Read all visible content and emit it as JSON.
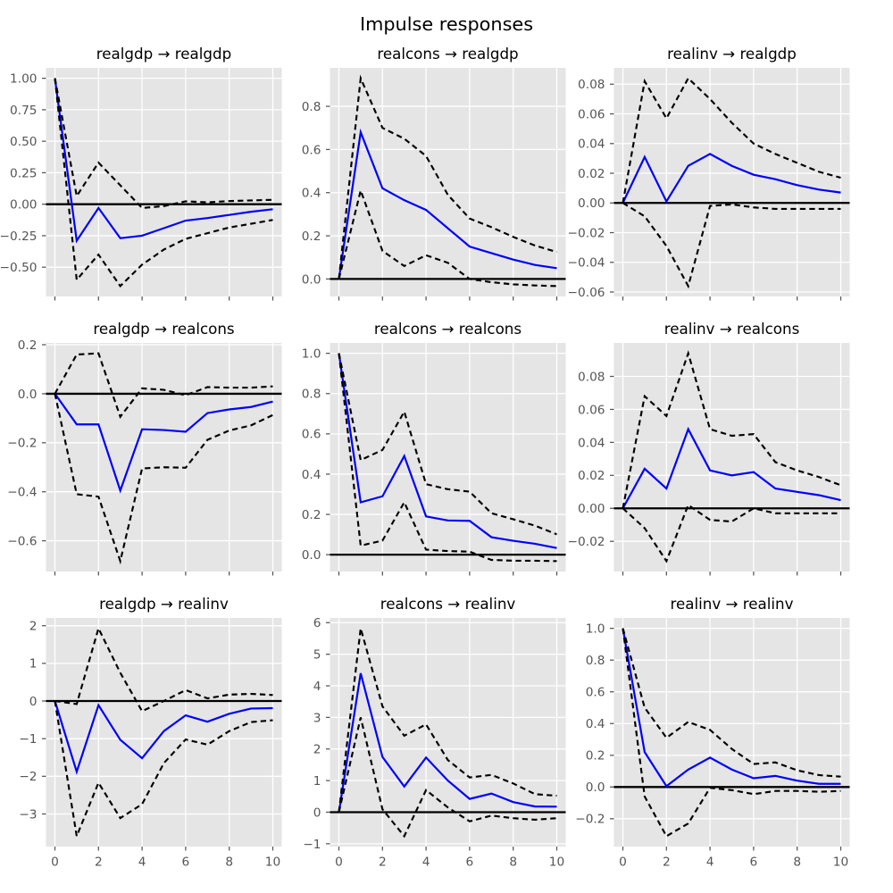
{
  "figure": {
    "title": "Impulse responses"
  },
  "style": {
    "figure_background": "#ffffff",
    "axes_background": "#e5e5e5",
    "grid_color": "#ffffff",
    "irf_line_color": "#0000ff",
    "confidence_band_color": "#000000",
    "zero_line_color": "#000000",
    "tick_color": "#555555",
    "title_color": "#000000"
  },
  "chart_data": {
    "type": "line",
    "title": "Impulse responses",
    "x": [
      0,
      1,
      2,
      3,
      4,
      5,
      6,
      7,
      8,
      9,
      10
    ],
    "xticks": [
      0,
      2,
      4,
      6,
      8,
      10
    ],
    "xtick_labels": [
      "0",
      "2",
      "4",
      "6",
      "8",
      "10"
    ],
    "xlim": [
      -0.41,
      10.41
    ],
    "grid": true,
    "legend": null,
    "series_styles": {
      "irf": "solid blue line",
      "upper": "dashed black line (upper confidence band)",
      "lower": "dashed black line (lower confidence band)"
    },
    "subplots": [
      {
        "row": 0,
        "col": 0,
        "title": "realgdp → realgdp",
        "impulse": "realgdp",
        "response": "realgdp",
        "ylim": [
          -0.7325,
          1.0825
        ],
        "ytick_values": [
          1.0,
          0.75,
          0.5,
          0.25,
          0.0,
          -0.25,
          -0.5
        ],
        "ytick_labels": [
          "1.00",
          "0.75",
          "0.50",
          "0.25",
          "0.00",
          "−0.25",
          "−0.50"
        ],
        "series": [
          {
            "name": "irf",
            "values": [
              1.0,
              -0.29,
              -0.03,
              -0.27,
              -0.25,
              -0.19,
              -0.13,
              -0.11,
              -0.085,
              -0.06,
              -0.04
            ]
          },
          {
            "name": "upper",
            "values": [
              1.0,
              0.065,
              0.33,
              0.15,
              -0.03,
              -0.015,
              0.023,
              0.015,
              0.025,
              0.03,
              0.035
            ]
          },
          {
            "name": "lower",
            "values": [
              1.0,
              -0.6,
              -0.4,
              -0.65,
              -0.48,
              -0.36,
              -0.275,
              -0.23,
              -0.185,
              -0.155,
              -0.125
            ]
          }
        ]
      },
      {
        "row": 0,
        "col": 1,
        "title": "realcons → realgdp",
        "impulse": "realcons",
        "response": "realgdp",
        "ylim": [
          -0.0811,
          0.9782
        ],
        "ytick_values": [
          0.8,
          0.6,
          0.4,
          0.2,
          0.0
        ],
        "ytick_labels": [
          "0.8",
          "0.6",
          "0.4",
          "0.2",
          "0.0"
        ],
        "series": [
          {
            "name": "irf",
            "values": [
              0,
              0.68,
              0.42,
              0.365,
              0.32,
              0.235,
              0.15,
              0.12,
              0.09,
              0.065,
              0.05
            ]
          },
          {
            "name": "upper",
            "values": [
              0,
              0.93,
              0.7,
              0.65,
              0.57,
              0.39,
              0.28,
              0.24,
              0.195,
              0.155,
              0.125
            ]
          },
          {
            "name": "lower",
            "values": [
              0,
              0.41,
              0.13,
              0.06,
              0.11,
              0.075,
              0.0,
              -0.015,
              -0.025,
              -0.03,
              -0.033
            ]
          }
        ]
      },
      {
        "row": 0,
        "col": 2,
        "title": "realinv → realgdp",
        "impulse": "realinv",
        "response": "realgdp",
        "ylim": [
          -0.063,
          0.091
        ],
        "ytick_values": [
          0.08,
          0.06,
          0.04,
          0.02,
          0.0,
          -0.02,
          -0.04,
          -0.06
        ],
        "ytick_labels": [
          "0.08",
          "0.06",
          "0.04",
          "0.02",
          "0.00",
          "−0.02",
          "−0.04",
          "−0.06"
        ],
        "series": [
          {
            "name": "irf",
            "values": [
              0,
              0.031,
              0.001,
              0.025,
              0.033,
              0.025,
              0.019,
              0.016,
              0.012,
              0.009,
              0.007
            ]
          },
          {
            "name": "upper",
            "values": [
              0,
              0.082,
              0.057,
              0.084,
              0.07,
              0.054,
              0.04,
              0.033,
              0.027,
              0.021,
              0.017
            ]
          },
          {
            "name": "lower",
            "values": [
              0,
              -0.009,
              -0.029,
              -0.056,
              -0.002,
              -0.001,
              -0.003,
              -0.004,
              -0.004,
              -0.004,
              -0.004
            ]
          }
        ]
      },
      {
        "row": 1,
        "col": 0,
        "title": "realgdp → realcons",
        "impulse": "realgdp",
        "response": "realcons",
        "ylim": [
          -0.7254,
          0.2074
        ],
        "ytick_values": [
          0.2,
          0.0,
          -0.2,
          -0.4,
          -0.6
        ],
        "ytick_labels": [
          "0.2",
          "0.0",
          "−0.2",
          "−0.4",
          "−0.6"
        ],
        "series": [
          {
            "name": "irf",
            "values": [
              0,
              -0.125,
              -0.125,
              -0.395,
              -0.145,
              -0.148,
              -0.155,
              -0.079,
              -0.064,
              -0.054,
              -0.032
            ]
          },
          {
            "name": "upper",
            "values": [
              0,
              0.16,
              0.165,
              -0.094,
              0.022,
              0.016,
              -0.006,
              0.027,
              0.025,
              0.025,
              0.03
            ]
          },
          {
            "name": "lower",
            "values": [
              0,
              -0.41,
              -0.42,
              -0.683,
              -0.305,
              -0.3,
              -0.302,
              -0.188,
              -0.15,
              -0.129,
              -0.087
            ]
          }
        ]
      },
      {
        "row": 1,
        "col": 1,
        "title": "realcons → realcons",
        "impulse": "realcons",
        "response": "realcons",
        "ylim": [
          -0.0836,
          1.0516
        ],
        "ytick_values": [
          1.0,
          0.8,
          0.6,
          0.4,
          0.2,
          0.0
        ],
        "ytick_labels": [
          "1.0",
          "0.8",
          "0.6",
          "0.4",
          "0.2",
          "0.0"
        ],
        "series": [
          {
            "name": "irf",
            "values": [
              1.0,
              0.26,
              0.29,
              0.49,
              0.19,
              0.17,
              0.168,
              0.087,
              0.069,
              0.054,
              0.033
            ]
          },
          {
            "name": "upper",
            "values": [
              1.0,
              0.47,
              0.52,
              0.71,
              0.35,
              0.325,
              0.313,
              0.206,
              0.176,
              0.144,
              0.101
            ]
          },
          {
            "name": "lower",
            "values": [
              1.0,
              0.045,
              0.07,
              0.26,
              0.025,
              0.018,
              0.015,
              -0.026,
              -0.03,
              -0.03,
              -0.032
            ]
          }
        ]
      },
      {
        "row": 1,
        "col": 2,
        "title": "realinv → realcons",
        "impulse": "realinv",
        "response": "realcons",
        "ylim": [
          -0.0383,
          0.1003
        ],
        "ytick_values": [
          0.08,
          0.06,
          0.04,
          0.02,
          0.0,
          -0.02
        ],
        "ytick_labels": [
          "0.08",
          "0.06",
          "0.04",
          "0.02",
          "0.00",
          "−0.02"
        ],
        "series": [
          {
            "name": "irf",
            "values": [
              0,
              0.024,
              0.012,
              0.048,
              0.023,
              0.02,
              0.022,
              0.012,
              0.01,
              0.008,
              0.005
            ]
          },
          {
            "name": "upper",
            "values": [
              0,
              0.068,
              0.056,
              0.094,
              0.048,
              0.044,
              0.045,
              0.028,
              0.023,
              0.019,
              0.014
            ]
          },
          {
            "name": "lower",
            "values": [
              0,
              -0.012,
              -0.032,
              0.002,
              -0.007,
              -0.008,
              0.0,
              -0.003,
              -0.003,
              -0.003,
              -0.003
            ]
          }
        ]
      },
      {
        "row": 2,
        "col": 0,
        "title": "realgdp → realinv",
        "impulse": "realgdp",
        "response": "realinv",
        "ylim": [
          -3.866,
          2.206
        ],
        "ytick_values": [
          2,
          1,
          0,
          -1,
          -2,
          -3
        ],
        "ytick_labels": [
          "2",
          "1",
          "0",
          "−1",
          "−2",
          "−3"
        ],
        "series": [
          {
            "name": "irf",
            "values": [
              0,
              -1.88,
              -0.11,
              -1.03,
              -1.52,
              -0.8,
              -0.38,
              -0.55,
              -0.34,
              -0.2,
              -0.19
            ]
          },
          {
            "name": "upper",
            "values": [
              0,
              -0.08,
              1.93,
              0.75,
              -0.27,
              0.0,
              0.29,
              0.07,
              0.17,
              0.19,
              0.16
            ]
          },
          {
            "name": "lower",
            "values": [
              0,
              -3.59,
              -2.17,
              -3.11,
              -2.74,
              -1.65,
              -1.02,
              -1.16,
              -0.8,
              -0.56,
              -0.51
            ]
          }
        ]
      },
      {
        "row": 2,
        "col": 1,
        "title": "realcons → realinv",
        "impulse": "realcons",
        "response": "realinv",
        "ylim": [
          -1.089,
          6.149
        ],
        "ytick_values": [
          6,
          5,
          4,
          3,
          2,
          1,
          0,
          -1
        ],
        "ytick_labels": [
          "6",
          "5",
          "4",
          "3",
          "2",
          "1",
          "0",
          "−1"
        ],
        "series": [
          {
            "name": "irf",
            "values": [
              0,
              4.4,
              1.75,
              0.81,
              1.73,
              1.0,
              0.42,
              0.59,
              0.32,
              0.18,
              0.175
            ]
          },
          {
            "name": "upper",
            "values": [
              0,
              5.82,
              3.35,
              2.42,
              2.78,
              1.65,
              1.1,
              1.18,
              0.91,
              0.57,
              0.52
            ]
          },
          {
            "name": "lower",
            "values": [
              0,
              3.0,
              0.09,
              -0.76,
              0.7,
              0.15,
              -0.29,
              -0.11,
              -0.19,
              -0.24,
              -0.19
            ]
          }
        ]
      },
      {
        "row": 2,
        "col": 2,
        "title": "realinv → realinv",
        "impulse": "realinv",
        "response": "realinv",
        "ylim": [
          -0.3755,
          1.0655
        ],
        "ytick_values": [
          1.0,
          0.8,
          0.6,
          0.4,
          0.2,
          0.0,
          -0.2
        ],
        "ytick_labels": [
          "1.0",
          "0.8",
          "0.6",
          "0.4",
          "0.2",
          "0.0",
          "−0.2"
        ],
        "series": [
          {
            "name": "irf",
            "values": [
              1.0,
              0.22,
              0.005,
              0.11,
              0.185,
              0.11,
              0.055,
              0.07,
              0.04,
              0.02,
              0.02
            ]
          },
          {
            "name": "upper",
            "values": [
              1.0,
              0.5,
              0.31,
              0.41,
              0.36,
              0.24,
              0.145,
              0.155,
              0.105,
              0.075,
              0.065
            ]
          },
          {
            "name": "lower",
            "values": [
              1.0,
              -0.06,
              -0.31,
              -0.23,
              -0.005,
              -0.02,
              -0.045,
              -0.025,
              -0.025,
              -0.03,
              -0.025
            ]
          }
        ]
      }
    ]
  }
}
